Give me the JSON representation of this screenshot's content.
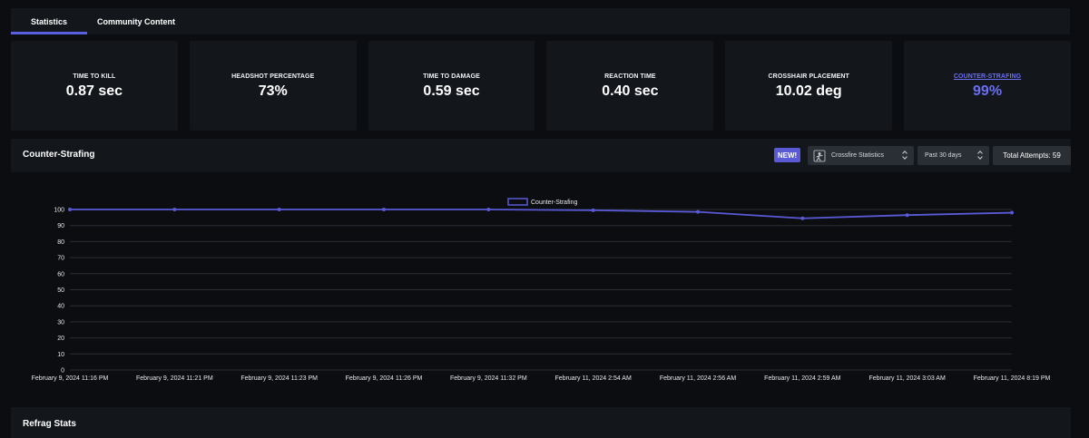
{
  "tabs": [
    {
      "label": "Statistics",
      "active": true
    },
    {
      "label": "Community Content",
      "active": false
    }
  ],
  "stat_cards": [
    {
      "label": "TIME TO KILL",
      "value": "0.87 sec"
    },
    {
      "label": "HEADSHOT PERCENTAGE",
      "value": "73%"
    },
    {
      "label": "TIME TO DAMAGE",
      "value": "0.59 sec"
    },
    {
      "label": "REACTION TIME",
      "value": "0.40 sec"
    },
    {
      "label": "CROSSHAIR PLACEMENT",
      "value": "10.02 deg"
    },
    {
      "label": "COUNTER-STRAFING",
      "value": "99%"
    }
  ],
  "panel": {
    "title": "Counter-Strafing",
    "new_badge": "NEW!",
    "source_select": {
      "value": "Crossfire Statistics",
      "icon": "crossfire-game-icon"
    },
    "range_select": {
      "value": "Past 30 days"
    },
    "total_attempts": "Total Attempts: 59"
  },
  "colors": {
    "accent": "#5c5ee0",
    "card_bg": "#13171c",
    "page_bg": "#0b0d10",
    "line": "#5a5ad6"
  },
  "chart_data": {
    "type": "line",
    "categories": [
      "February 9, 2024 11:16 PM",
      "February 9, 2024 11:21 PM",
      "February 9, 2024 11:23 PM",
      "February 9, 2024 11:26 PM",
      "February 9, 2024 11:32 PM",
      "February 11, 2024 2:54 AM",
      "February 11, 2024 2:56 AM",
      "February 11, 2024 2:59 AM",
      "February 11, 2024 3:03 AM",
      "February 11, 2024 8:19 PM"
    ],
    "series": [
      {
        "name": "Counter-Strafing",
        "values": [
          100,
          100,
          100,
          100,
          100,
          99.5,
          98.5,
          94.5,
          96.5,
          98
        ]
      }
    ],
    "yticks": [
      0,
      10,
      20,
      30,
      40,
      50,
      60,
      70,
      80,
      90,
      100
    ],
    "ylim": [
      0,
      100
    ],
    "grid": true,
    "legend": "top-center"
  },
  "refrag": {
    "title": "Refrag Stats"
  }
}
